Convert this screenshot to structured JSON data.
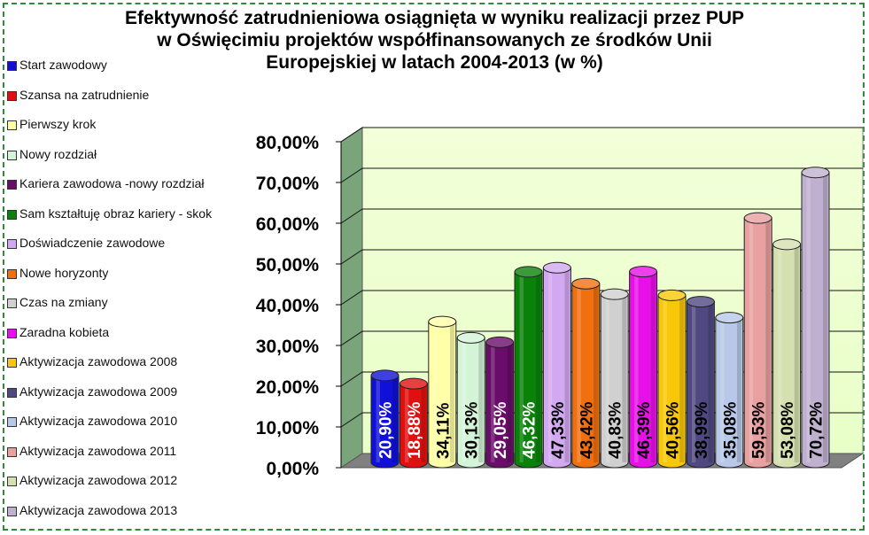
{
  "chart_data": {
    "type": "bar",
    "title_lines": [
      "Efektywność zatrudnieniowa osiągnięta w wyniku realizacji przez PUP",
      "w Oświęcimiu projektów współfinansowanych ze środków Unii",
      "Europejskiej w latach 2004-2013 (w %)"
    ],
    "ylim": [
      0,
      80
    ],
    "yticks": [
      {
        "value": 0,
        "label": "0,00%"
      },
      {
        "value": 10,
        "label": "10,00%"
      },
      {
        "value": 20,
        "label": "20,00%"
      },
      {
        "value": 30,
        "label": "30,00%"
      },
      {
        "value": 40,
        "label": "40,00%"
      },
      {
        "value": 50,
        "label": "50,00%"
      },
      {
        "value": 60,
        "label": "60,00%"
      },
      {
        "value": 70,
        "label": "70,00%"
      },
      {
        "value": 80,
        "label": "80,00%"
      }
    ],
    "grid": true,
    "legend_position": "left",
    "series": [
      {
        "name": "Start zawodowy",
        "value": 20.9,
        "label": "20,90%",
        "color": "#1010d8",
        "label_color": "#ffffff"
      },
      {
        "name": "Szansa na zatrudnienie",
        "value": 18.88,
        "label": "18,88%",
        "color": "#e01010",
        "label_color": "#ffffff"
      },
      {
        "name": "Pierwszy krok",
        "value": 34.11,
        "label": "34,11%",
        "color": "#ffffa8",
        "label_color": "#000000"
      },
      {
        "name": "Nowy rozdział",
        "value": 30.13,
        "label": "30,13%",
        "color": "#d4f4d8",
        "label_color": "#000000"
      },
      {
        "name": "Kariera zawodowa -nowy rozdział",
        "value": 29.05,
        "label": "29,05%",
        "color": "#6a0c6a",
        "label_color": "#ffffff"
      },
      {
        "name": "Sam kształtuję obraz kariery - skok",
        "value": 46.32,
        "label": "46,32%",
        "color": "#0a820a",
        "label_color": "#ffffff"
      },
      {
        "name": "Doświadczenie zawodowe",
        "value": 47.33,
        "label": "47,33%",
        "color": "#d2a8f0",
        "label_color": "#000000"
      },
      {
        "name": "Nowe horyzonty",
        "value": 43.42,
        "label": "43,42%",
        "color": "#f07010",
        "label_color": "#000000"
      },
      {
        "name": "Czas na zmiany",
        "value": 40.83,
        "label": "40,83%",
        "color": "#d0d0d0",
        "label_color": "#000000"
      },
      {
        "name": "Zaradna kobieta",
        "value": 46.39,
        "label": "46,39%",
        "color": "#e810e8",
        "label_color": "#000000"
      },
      {
        "name": "Aktywizacja zawodowa 2008",
        "value": 40.56,
        "label": "40,56%",
        "color": "#f8c808",
        "label_color": "#000000"
      },
      {
        "name": "Aktywizacja zawodowa 2009",
        "value": 38.99,
        "label": "38,99%",
        "color": "#504880",
        "label_color": "#000000"
      },
      {
        "name": "Aktywizacja zawodowa 2010",
        "value": 35.08,
        "label": "35,08%",
        "color": "#b8c8e8",
        "label_color": "#000000"
      },
      {
        "name": "Aktywizacja zawodowa 2011",
        "value": 59.53,
        "label": "59,53%",
        "color": "#e8a0a0",
        "label_color": "#000000"
      },
      {
        "name": "Aktywizacja zawodowa 2012",
        "value": 53.08,
        "label": "53,08%",
        "color": "#d4e0b0",
        "label_color": "#000000"
      },
      {
        "name": "Aktywizacja zawodowa 2013",
        "value": 70.72,
        "label": "70,72%",
        "color": "#c0b0d0",
        "label_color": "#000000"
      }
    ],
    "plot_background": "#e8ffc8",
    "plot_floor": "#808080"
  }
}
